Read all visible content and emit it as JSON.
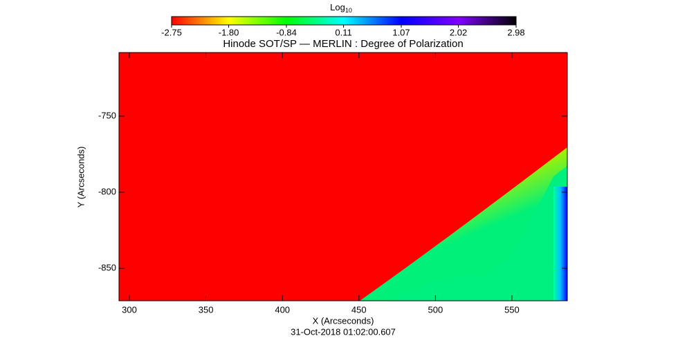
{
  "chart_data": {
    "type": "image",
    "title": "Hinode SOT/SP — MERLIN : Degree of Polarization",
    "x_label": "X (Arcseconds)",
    "y_label": "Y (Arcseconds)",
    "footer": "31-Oct-2018 01:02:00.607",
    "xlim": [
      293.2,
      586.2
    ],
    "xticks": [
      300,
      350,
      400,
      450,
      500,
      550
    ],
    "ylim": [
      -871.4,
      -708.2
    ],
    "yticks": [
      -750,
      -800,
      -850
    ],
    "colorbar": {
      "title": "Log",
      "title_sub": "10",
      "lim": [
        -2.75,
        2.98
      ],
      "ticks": [
        -2.75,
        -1.8,
        {
          "value": -0.84,
          "label": "-0.84"
        },
        0.11,
        1.07,
        2.02,
        2.98
      ],
      "colors": [
        "#ff0000",
        "#ffff00",
        "#00ff00",
        "#00ffff",
        "#0000ff",
        "#8000ff",
        "#000000"
      ]
    }
  }
}
